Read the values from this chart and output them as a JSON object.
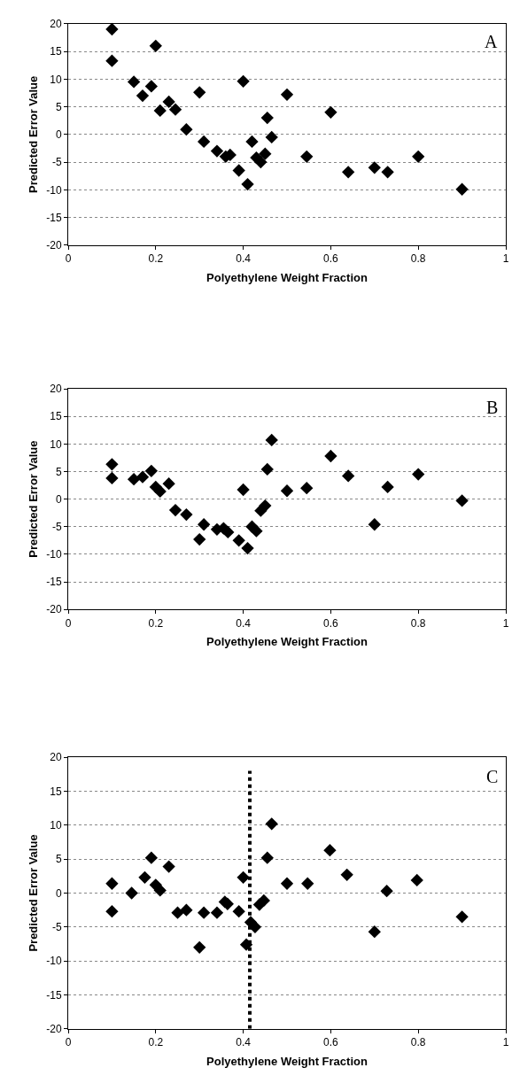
{
  "chart_data": [
    {
      "type": "scatter",
      "xlabel": "Polyethylene Weight Fraction",
      "ylabel": "Predicted Error Value",
      "annotations": [
        "A"
      ],
      "xlim": [
        0,
        1
      ],
      "xticks": [
        0,
        0.2,
        0.4,
        0.6,
        0.8,
        1
      ],
      "ylim": [
        -20,
        20
      ],
      "yticks": [
        -20,
        -15,
        -10,
        -5,
        0,
        5,
        10,
        15,
        20
      ],
      "grid": "y",
      "marker": "diamond",
      "series": [
        {
          "color": "#000000",
          "x": [
            0.1,
            0.1,
            0.15,
            0.17,
            0.19,
            0.2,
            0.21,
            0.23,
            0.245,
            0.27,
            0.3,
            0.31,
            0.34,
            0.36,
            0.37,
            0.39,
            0.4,
            0.41,
            0.42,
            0.43,
            0.44,
            0.45,
            0.455,
            0.465,
            0.5,
            0.545,
            0.6,
            0.64,
            0.7,
            0.73,
            0.8,
            0.9
          ],
          "values": [
            19,
            13.3,
            9.5,
            7,
            8.7,
            16,
            4.3,
            5.9,
            4.5,
            0.9,
            7.6,
            -1.3,
            -3,
            -4,
            -3.7,
            -6.5,
            9.6,
            -9,
            -1.3,
            -4.2,
            -5,
            -3.5,
            3,
            -0.5,
            7.2,
            -4,
            4,
            -6.8,
            -6,
            -6.8,
            -4,
            -9.9
          ]
        }
      ]
    },
    {
      "type": "scatter",
      "xlabel": "Polyethylene Weight Fraction",
      "ylabel": "Predicted Error Value",
      "annotations": [
        "B"
      ],
      "xlim": [
        0,
        1
      ],
      "xticks": [
        0,
        0.2,
        0.4,
        0.6,
        0.8,
        1
      ],
      "ylim": [
        -20,
        20
      ],
      "yticks": [
        -20,
        -15,
        -10,
        -5,
        0,
        5,
        10,
        15,
        20
      ],
      "grid": "y",
      "marker": "diamond",
      "series": [
        {
          "color": "#000000",
          "x": [
            0.1,
            0.1,
            0.15,
            0.17,
            0.19,
            0.2,
            0.21,
            0.23,
            0.245,
            0.27,
            0.3,
            0.31,
            0.34,
            0.355,
            0.365,
            0.39,
            0.4,
            0.41,
            0.42,
            0.43,
            0.44,
            0.45,
            0.455,
            0.465,
            0.5,
            0.545,
            0.6,
            0.64,
            0.7,
            0.73,
            0.8,
            0.9
          ],
          "values": [
            6.3,
            3.8,
            3.6,
            4,
            5.1,
            2.2,
            1.4,
            2.8,
            -2,
            -2.8,
            -7.3,
            -4.6,
            -5.5,
            -5.3,
            -6,
            -7.5,
            1.7,
            -8.9,
            -5,
            -5.8,
            -2.1,
            -1.2,
            5.4,
            10.7,
            1.5,
            2,
            7.8,
            4.2,
            -4.6,
            2.2,
            4.5,
            -0.3
          ]
        }
      ]
    },
    {
      "type": "scatter",
      "xlabel": "Polyethylene Weight Fraction",
      "ylabel": "Predicted Error Value",
      "annotations": [
        "C"
      ],
      "xlim": [
        0,
        1
      ],
      "xticks": [
        0,
        0.2,
        0.4,
        0.6,
        0.8,
        1
      ],
      "ylim": [
        -20,
        20
      ],
      "yticks": [
        -20,
        -15,
        -10,
        -5,
        0,
        5,
        10,
        15,
        20
      ],
      "grid": "y",
      "marker": "diamond",
      "series": [
        {
          "color": "#000000",
          "x": [
            0.1,
            0.1,
            0.145,
            0.175,
            0.19,
            0.2,
            0.21,
            0.23,
            0.25,
            0.27,
            0.3,
            0.31,
            0.34,
            0.358,
            0.364,
            0.39,
            0.4,
            0.407,
            0.417,
            0.427,
            0.437,
            0.447,
            0.455,
            0.465,
            0.5,
            0.547,
            0.598,
            0.637,
            0.7,
            0.728,
            0.797,
            0.9
          ],
          "values": [
            1.4,
            -2.7,
            0,
            2.3,
            5.2,
            1.2,
            0.4,
            3.9,
            -2.9,
            -2.5,
            -8,
            -2.9,
            -2.9,
            -1.3,
            -1.6,
            -2.7,
            2.3,
            -7.6,
            -4.3,
            -5,
            -1.7,
            -1.1,
            5.2,
            10.2,
            1.4,
            1.4,
            6.3,
            2.7,
            -5.7,
            0.3,
            1.9,
            -3.5
          ]
        },
        {
          "type": "line",
          "color": "#000000",
          "line_style": "dotted",
          "marker": "none",
          "x": [
            0.415,
            0.415
          ],
          "values": [
            -20,
            18
          ]
        }
      ]
    }
  ]
}
